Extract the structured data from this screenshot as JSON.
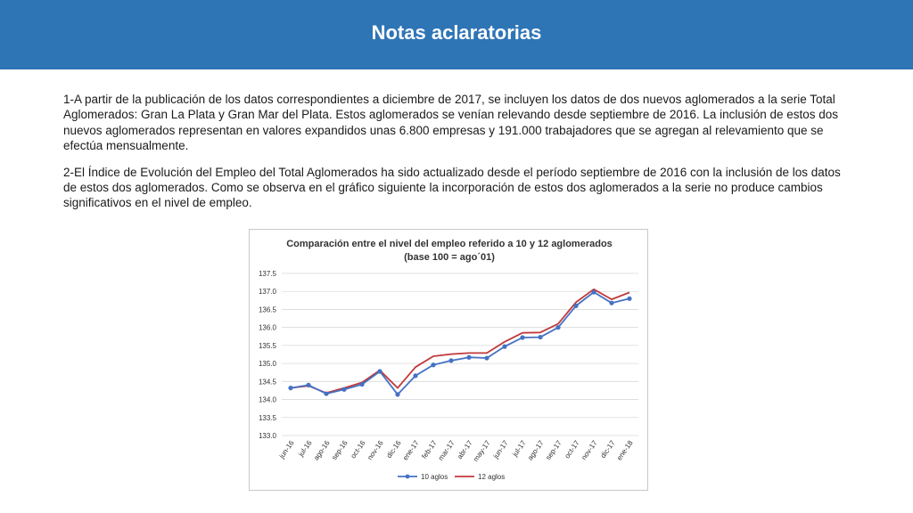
{
  "header": {
    "title": "Notas aclaratorias",
    "background_color": "#2e75b6"
  },
  "notes": {
    "paragraph_1": "1-A partir de la publicación de los datos correspondientes a diciembre de 2017, se incluyen los datos de dos nuevos aglomerados a la serie Total Aglomerados: Gran La Plata y Gran Mar del Plata. Estos aglomerados se venían relevando desde septiembre de 2016. La inclusión de estos dos nuevos aglomerados representan en valores expandidos unas 6.800 empresas y 191.000 trabajadores que se agregan al relevamiento que se efectúa mensualmente.",
    "paragraph_2": "2-El Índice de Evolución del Empleo del Total Aglomerados ha sido actualizado desde el período septiembre de 2016 con la inclusión de los datos de estos dos aglomerados. Como se observa en el gráfico siguiente la incorporación de estos dos aglomerados a la serie no produce cambios significativos en el nivel de empleo."
  },
  "chart_data": {
    "type": "line",
    "title": "Comparación  entre el nivel del empleo referido a 10 y 12 aglomerados",
    "subtitle": "(base 100 = ago´01)",
    "xlabel": "",
    "ylabel": "",
    "ylim": [
      133.0,
      137.5
    ],
    "ytick_labels": [
      "133.0",
      "133.5",
      "134.0",
      "134.5",
      "135.0",
      "135.5",
      "136.0",
      "136.5",
      "137.0",
      "137.5"
    ],
    "grid": true,
    "legend_position": "bottom",
    "categories": [
      "jun-16",
      "jul-16",
      "ago-16",
      "sep-16",
      "oct-16",
      "nov-16",
      "dic-16",
      "ene-17",
      "feb-17",
      "mar-17",
      "abr-17",
      "may-17",
      "jun-17",
      "jul-17",
      "ago-17",
      "sep-17",
      "oct-17",
      "nov-17",
      "dic-17",
      "ene-18"
    ],
    "series": [
      {
        "name": "10 aglos",
        "color": "#4472c4",
        "marker": "circle",
        "values": [
          134.32,
          134.4,
          134.16,
          134.28,
          134.42,
          134.78,
          134.14,
          134.66,
          134.96,
          135.08,
          135.17,
          135.15,
          135.47,
          135.72,
          135.73,
          136.0,
          136.6,
          136.98,
          136.68,
          136.8
        ]
      },
      {
        "name": "12 aglos",
        "color": "#c0393b",
        "marker": "none",
        "values": [
          134.32,
          134.38,
          134.18,
          134.32,
          134.47,
          134.81,
          134.32,
          134.9,
          135.2,
          135.26,
          135.29,
          135.29,
          135.6,
          135.85,
          135.86,
          136.1,
          136.7,
          137.06,
          136.78,
          136.97
        ]
      }
    ]
  }
}
